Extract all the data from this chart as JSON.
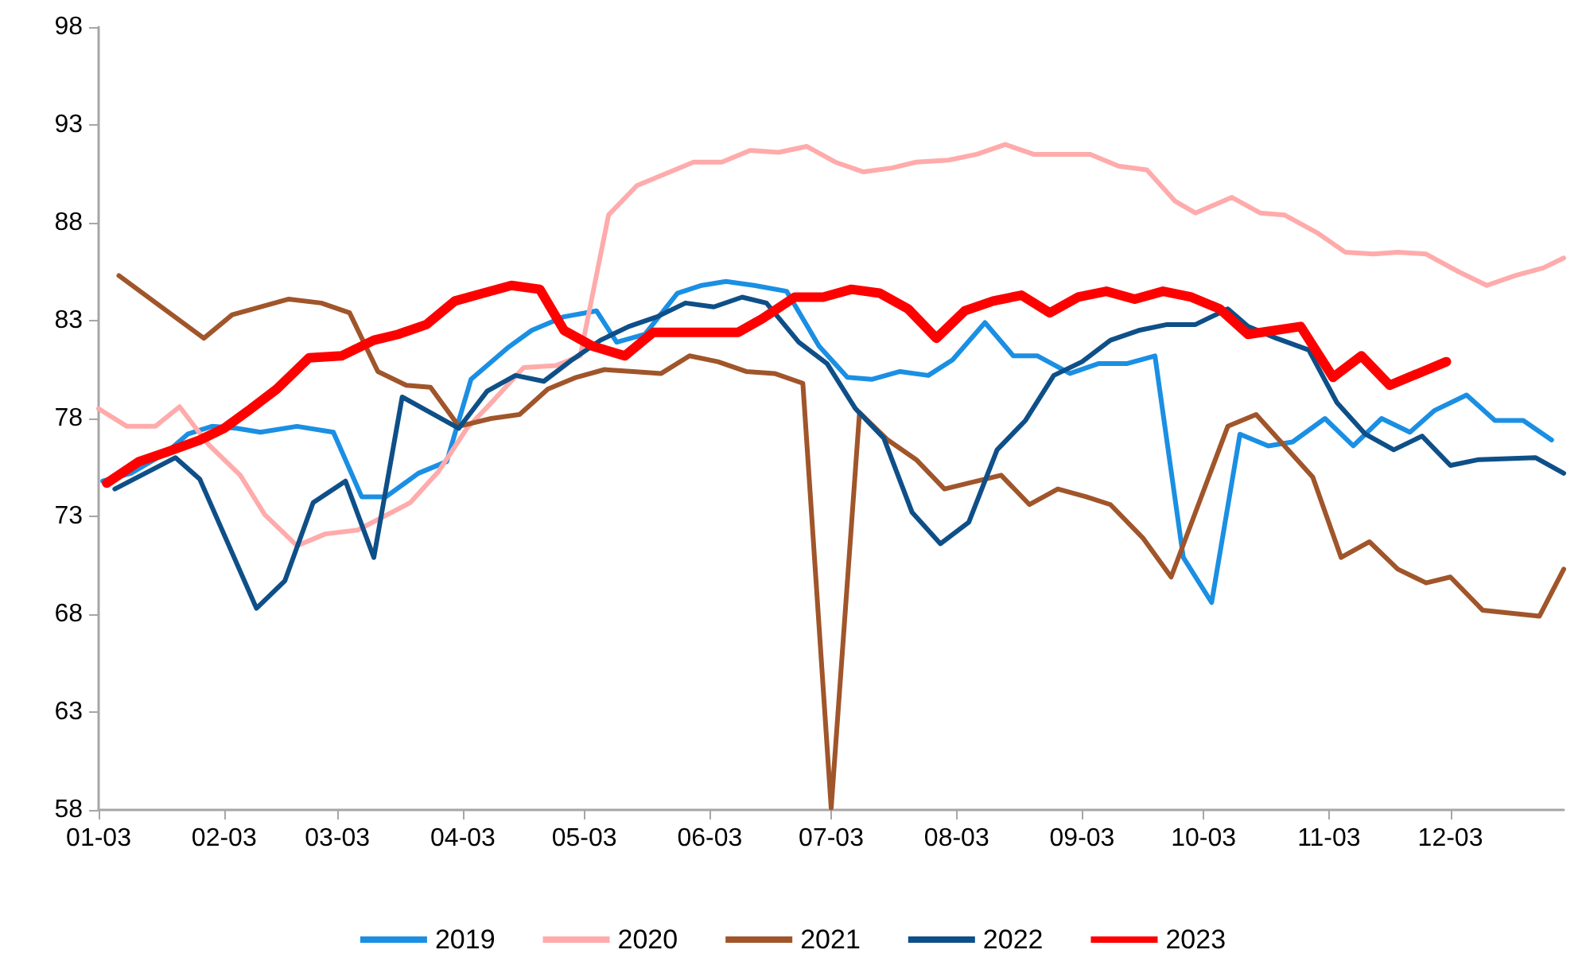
{
  "chart_data": {
    "type": "line",
    "legend": "bottom",
    "grid": false,
    "marker": "none",
    "line_style": "solid",
    "xlim": [
      "--01-03",
      "--12-31"
    ],
    "xticks": [
      {
        "value": "--01-03",
        "label": "01-03"
      },
      {
        "value": "--02-03",
        "label": "02-03"
      },
      {
        "value": "--03-03",
        "label": "03-03"
      },
      {
        "value": "--04-03",
        "label": "04-03"
      },
      {
        "value": "--05-03",
        "label": "05-03"
      },
      {
        "value": "--06-03",
        "label": "06-03"
      },
      {
        "value": "--07-03",
        "label": "07-03"
      },
      {
        "value": "--08-03",
        "label": "08-03"
      },
      {
        "value": "--09-03",
        "label": "09-03"
      },
      {
        "value": "--10-03",
        "label": "10-03"
      },
      {
        "value": "--11-03",
        "label": "11-03"
      },
      {
        "value": "--12-03",
        "label": "12-03"
      }
    ],
    "ylim": [
      58,
      98
    ],
    "yticks": [
      58,
      63,
      68,
      73,
      78,
      83,
      88,
      93,
      98
    ],
    "series": [
      {
        "name": "2019",
        "color": "#1a8fe3",
        "x": [
          "--01-04",
          "--01-11",
          "--01-20",
          "--01-25",
          "--01-31",
          "--02-06",
          "--02-12",
          "--02-21",
          "--03-02",
          "--03-09",
          "--03-15",
          "--03-23",
          "--03-30",
          "--04-05",
          "--04-14",
          "--04-20",
          "--04-28",
          "--05-06",
          "--05-11",
          "--05-18",
          "--05-26",
          "--06-01",
          "--06-07",
          "--06-14",
          "--06-22",
          "--06-30",
          "--07-07",
          "--07-13",
          "--07-20",
          "--07-27",
          "--08-02",
          "--08-10",
          "--08-17",
          "--08-23",
          "--08-31",
          "--09-07",
          "--09-14",
          "--09-21",
          "--09-28",
          "--10-05",
          "--10-12",
          "--10-19",
          "--10-25",
          "--11-02",
          "--11-09",
          "--11-16",
          "--11-23",
          "--11-29",
          "--12-07",
          "--12-14",
          "--12-21",
          "--12-28"
        ],
        "values": [
          74.8,
          75.2,
          76.3,
          77.2,
          77.6,
          77.5,
          77.3,
          77.6,
          77.3,
          74.0,
          74.0,
          75.2,
          75.8,
          80.0,
          81.6,
          82.5,
          83.2,
          83.5,
          81.9,
          82.3,
          84.4,
          84.8,
          85.0,
          84.8,
          84.5,
          81.7,
          80.1,
          80.0,
          80.4,
          80.2,
          81.0,
          82.9,
          81.2,
          81.2,
          80.3,
          80.8,
          80.8,
          81.2,
          70.9,
          68.6,
          77.2,
          76.6,
          76.8,
          78.0,
          76.6,
          78.0,
          77.3,
          78.4,
          79.2,
          77.9,
          77.9,
          76.9
        ]
      },
      {
        "name": "2020",
        "color": "#ffabab",
        "x": [
          "--01-03",
          "--01-10",
          "--01-17",
          "--01-23",
          "--01-30",
          "--02-07",
          "--02-13",
          "--02-21",
          "--02-28",
          "--03-08",
          "--03-21",
          "--03-28",
          "--04-04",
          "--04-10",
          "--04-18",
          "--04-26",
          "--05-02",
          "--05-09",
          "--05-16",
          "--05-23",
          "--05-30",
          "--06-06",
          "--06-13",
          "--06-20",
          "--06-27",
          "--07-04",
          "--07-11",
          "--07-18",
          "--07-24",
          "--08-01",
          "--08-08",
          "--08-15",
          "--08-22",
          "--08-29",
          "--09-05",
          "--09-12",
          "--09-19",
          "--09-26",
          "--10-01",
          "--10-10",
          "--10-17",
          "--10-23",
          "--10-31",
          "--11-07",
          "--11-14",
          "--11-20",
          "--11-27",
          "--12-05",
          "--12-12",
          "--12-19",
          "--12-26",
          "--12-31"
        ],
        "values": [
          78.5,
          77.6,
          77.6,
          78.6,
          76.7,
          75.1,
          73.1,
          71.5,
          72.1,
          72.3,
          73.7,
          75.3,
          77.5,
          78.8,
          80.6,
          80.7,
          81.2,
          88.4,
          89.9,
          90.5,
          91.1,
          91.1,
          91.7,
          91.6,
          91.9,
          91.1,
          90.6,
          90.8,
          91.1,
          91.2,
          91.5,
          92.0,
          91.5,
          91.5,
          91.5,
          90.9,
          90.7,
          89.1,
          88.5,
          89.3,
          88.5,
          88.4,
          87.5,
          86.5,
          86.4,
          86.5,
          86.4,
          85.5,
          84.8,
          85.3,
          85.7,
          86.2
        ]
      },
      {
        "name": "2021",
        "color": "#a0552a",
        "x": [
          "--01-08",
          "--01-29",
          "--02-05",
          "--02-19",
          "--02-27",
          "--03-06",
          "--03-13",
          "--03-20",
          "--03-26",
          "--04-02",
          "--04-10",
          "--04-17",
          "--04-24",
          "--05-01",
          "--05-08",
          "--05-15",
          "--05-22",
          "--05-29",
          "--06-05",
          "--06-12",
          "--06-19",
          "--06-26",
          "--07-03",
          "--07-10",
          "--07-17",
          "--07-24",
          "--07-31",
          "--08-06",
          "--08-14",
          "--08-21",
          "--08-28",
          "--09-04",
          "--09-10",
          "--09-18",
          "--09-25",
          "--10-09",
          "--10-16",
          "--10-30",
          "--11-06",
          "--11-13",
          "--11-20",
          "--11-27",
          "--12-03",
          "--12-11",
          "--12-25",
          "--12-31"
        ],
        "values": [
          85.3,
          82.1,
          83.3,
          84.1,
          83.9,
          83.4,
          80.4,
          79.7,
          79.6,
          77.6,
          78.0,
          78.2,
          79.5,
          80.1,
          80.5,
          80.4,
          80.3,
          81.2,
          80.9,
          80.4,
          80.3,
          79.8,
          58.1,
          78.3,
          76.9,
          75.9,
          74.4,
          74.7,
          75.1,
          73.6,
          74.4,
          74.0,
          73.6,
          71.9,
          69.9,
          77.6,
          78.2,
          75.0,
          70.9,
          71.7,
          70.3,
          69.6,
          69.9,
          68.2,
          67.9,
          70.3
        ]
      },
      {
        "name": "2022",
        "color": "#0e4f88",
        "x": [
          "--01-07",
          "--01-22",
          "--01-28",
          "--02-11",
          "--02-18",
          "--02-25",
          "--03-05",
          "--03-12",
          "--03-19",
          "--04-02",
          "--04-09",
          "--04-16",
          "--04-23",
          "--04-30",
          "--05-07",
          "--05-14",
          "--05-21",
          "--05-28",
          "--06-04",
          "--06-11",
          "--06-17",
          "--06-25",
          "--07-02",
          "--07-09",
          "--07-16",
          "--07-23",
          "--07-30",
          "--08-06",
          "--08-13",
          "--08-20",
          "--08-27",
          "--09-03",
          "--09-10",
          "--09-17",
          "--09-24",
          "--10-01",
          "--10-09",
          "--10-14",
          "--10-21",
          "--10-29",
          "--11-05",
          "--11-12",
          "--11-19",
          "--11-26",
          "--12-03",
          "--12-10",
          "--12-24",
          "--12-31"
        ],
        "values": [
          74.4,
          76.0,
          74.9,
          68.3,
          69.7,
          73.7,
          74.8,
          70.9,
          79.1,
          77.5,
          79.4,
          80.2,
          79.9,
          81.0,
          82.0,
          82.7,
          83.2,
          83.9,
          83.7,
          84.2,
          83.9,
          81.9,
          80.8,
          78.5,
          77.0,
          73.2,
          71.6,
          72.7,
          76.4,
          77.9,
          80.2,
          80.9,
          82.0,
          82.5,
          82.8,
          82.8,
          83.6,
          82.7,
          82.1,
          81.5,
          78.8,
          77.2,
          76.4,
          77.1,
          75.6,
          75.9,
          76.0,
          75.2
        ]
      },
      {
        "name": "2023",
        "color": "#ff0000",
        "x": [
          "--01-05",
          "--01-13",
          "--01-20",
          "--01-28",
          "--02-03",
          "--02-09",
          "--02-16",
          "--02-24",
          "--03-04",
          "--03-12",
          "--03-18",
          "--03-25",
          "--04-01",
          "--04-08",
          "--04-15",
          "--04-22",
          "--04-28",
          "--05-05",
          "--05-13",
          "--05-20",
          "--05-28",
          "--06-04",
          "--06-10",
          "--06-16",
          "--06-24",
          "--07-01",
          "--07-08",
          "--07-15",
          "--07-22",
          "--07-29",
          "--08-05",
          "--08-12",
          "--08-19",
          "--08-26",
          "--09-02",
          "--09-09",
          "--09-16",
          "--09-23",
          "--09-30",
          "--10-07",
          "--10-14",
          "--10-27",
          "--11-04",
          "--11-11",
          "--11-18",
          "--11-25",
          "--12-02"
        ],
        "values": [
          74.7,
          75.8,
          76.3,
          76.9,
          77.5,
          78.4,
          79.5,
          81.1,
          81.2,
          82.0,
          82.3,
          82.8,
          84.0,
          84.4,
          84.8,
          84.6,
          82.5,
          81.7,
          81.2,
          82.4,
          82.4,
          82.4,
          82.4,
          83.1,
          84.2,
          84.2,
          84.6,
          84.4,
          83.6,
          82.1,
          83.5,
          84.0,
          84.3,
          83.4,
          84.2,
          84.5,
          84.1,
          84.5,
          84.2,
          83.6,
          82.3,
          82.7,
          80.1,
          81.2,
          79.7,
          80.3,
          80.9
        ]
      }
    ]
  }
}
